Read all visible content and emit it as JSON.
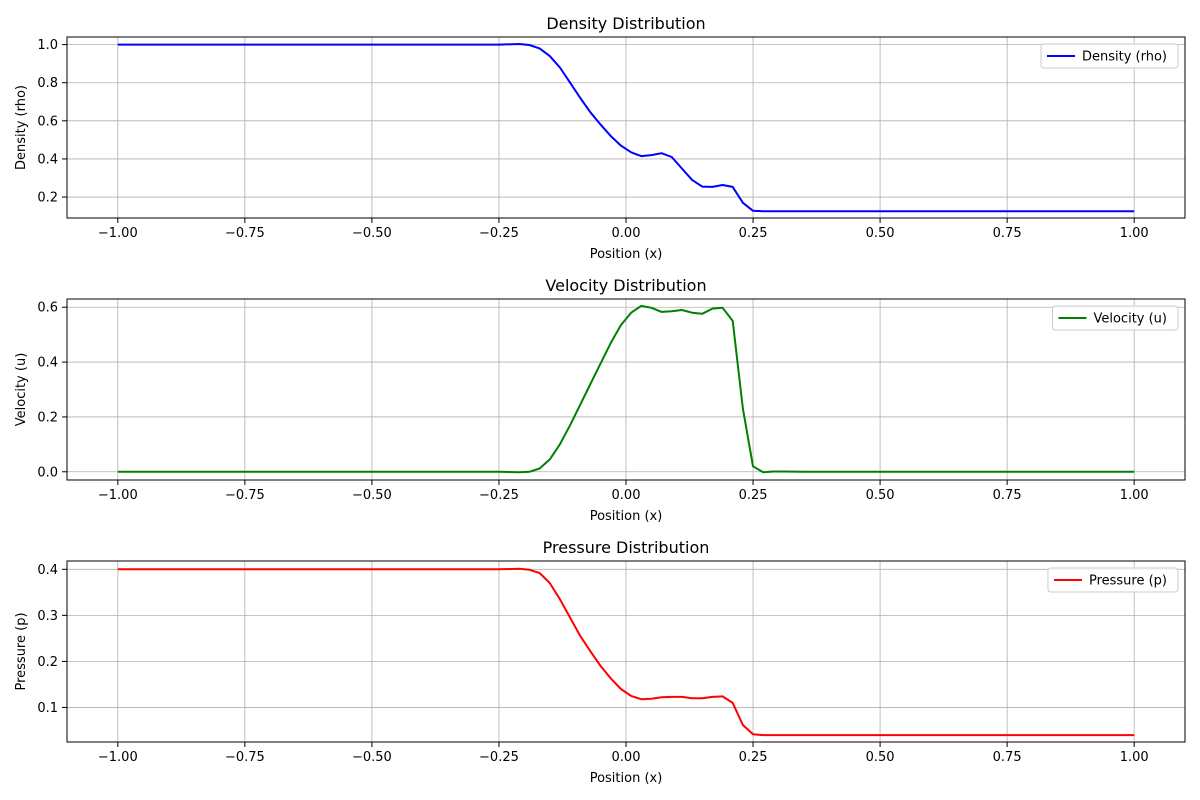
{
  "chart_data": [
    {
      "type": "line",
      "title": "Density Distribution",
      "xlabel": "Position (x)",
      "ylabel": "Density (rho)",
      "xlim": [
        -1.1,
        1.1
      ],
      "ylim": [
        0.09,
        1.04
      ],
      "xticks": [
        -1.0,
        -0.75,
        -0.5,
        -0.25,
        0.0,
        0.25,
        0.5,
        0.75,
        1.0
      ],
      "xtick_labels": [
        "−1.00",
        "−0.75",
        "−0.50",
        "−0.25",
        "0.00",
        "0.25",
        "0.50",
        "0.75",
        "1.00"
      ],
      "yticks": [
        0.2,
        0.4,
        0.6,
        0.8,
        1.0
      ],
      "ytick_labels": [
        "0.2",
        "0.4",
        "0.6",
        "0.8",
        "1.0"
      ],
      "grid": true,
      "legend_position": "top-right",
      "series": [
        {
          "name": "Density (rho)",
          "color": "#0000ff",
          "x": [
            -1.0,
            -0.25,
            -0.21,
            -0.19,
            -0.17,
            -0.15,
            -0.13,
            -0.11,
            -0.09,
            -0.07,
            -0.05,
            -0.03,
            -0.01,
            0.01,
            0.03,
            0.05,
            0.07,
            0.09,
            0.11,
            0.13,
            0.15,
            0.17,
            0.19,
            0.21,
            0.23,
            0.25,
            0.27,
            0.3,
            1.0
          ],
          "y": [
            1.0,
            1.0,
            1.003,
            0.998,
            0.98,
            0.94,
            0.88,
            0.8,
            0.72,
            0.645,
            0.58,
            0.52,
            0.47,
            0.435,
            0.415,
            0.42,
            0.43,
            0.41,
            0.35,
            0.29,
            0.255,
            0.253,
            0.263,
            0.253,
            0.17,
            0.128,
            0.125,
            0.125,
            0.125
          ]
        }
      ]
    },
    {
      "type": "line",
      "title": "Velocity Distribution",
      "xlabel": "Position (x)",
      "ylabel": "Velocity (u)",
      "xlim": [
        -1.1,
        1.1
      ],
      "ylim": [
        -0.03,
        0.63
      ],
      "xticks": [
        -1.0,
        -0.75,
        -0.5,
        -0.25,
        0.0,
        0.25,
        0.5,
        0.75,
        1.0
      ],
      "xtick_labels": [
        "−1.00",
        "−0.75",
        "−0.50",
        "−0.25",
        "0.00",
        "0.25",
        "0.50",
        "0.75",
        "1.00"
      ],
      "yticks": [
        0.0,
        0.2,
        0.4,
        0.6
      ],
      "ytick_labels": [
        "0.0",
        "0.2",
        "0.4",
        "0.6"
      ],
      "grid": true,
      "legend_position": "top-right",
      "series": [
        {
          "name": "Velocity (u)",
          "color": "#008000",
          "x": [
            -1.0,
            -0.25,
            -0.21,
            -0.19,
            -0.17,
            -0.15,
            -0.13,
            -0.11,
            -0.09,
            -0.07,
            -0.05,
            -0.03,
            -0.01,
            0.01,
            0.03,
            0.05,
            0.07,
            0.09,
            0.11,
            0.13,
            0.15,
            0.17,
            0.19,
            0.21,
            0.23,
            0.25,
            0.27,
            0.29,
            0.31,
            0.35,
            1.0
          ],
          "y": [
            0.0,
            0.0,
            -0.002,
            0.0,
            0.012,
            0.045,
            0.1,
            0.17,
            0.245,
            0.32,
            0.395,
            0.47,
            0.535,
            0.58,
            0.605,
            0.598,
            0.583,
            0.585,
            0.59,
            0.58,
            0.576,
            0.595,
            0.598,
            0.55,
            0.23,
            0.02,
            -0.002,
            0.001,
            0.001,
            0.0,
            0.0
          ]
        }
      ]
    },
    {
      "type": "line",
      "title": "Pressure Distribution",
      "xlabel": "Position (x)",
      "ylabel": "Pressure (p)",
      "xlim": [
        -1.1,
        1.1
      ],
      "ylim": [
        0.025,
        0.418
      ],
      "xticks": [
        -1.0,
        -0.75,
        -0.5,
        -0.25,
        0.0,
        0.25,
        0.5,
        0.75,
        1.0
      ],
      "xtick_labels": [
        "−1.00",
        "−0.75",
        "−0.50",
        "−0.25",
        "0.00",
        "0.25",
        "0.50",
        "0.75",
        "1.00"
      ],
      "yticks": [
        0.1,
        0.2,
        0.3,
        0.4
      ],
      "ytick_labels": [
        "0.1",
        "0.2",
        "0.3",
        "0.4"
      ],
      "grid": true,
      "legend_position": "top-right",
      "series": [
        {
          "name": "Pressure (p)",
          "color": "#ff0000",
          "x": [
            -1.0,
            -0.25,
            -0.21,
            -0.19,
            -0.17,
            -0.15,
            -0.13,
            -0.11,
            -0.09,
            -0.07,
            -0.05,
            -0.03,
            -0.01,
            0.01,
            0.03,
            0.05,
            0.07,
            0.09,
            0.11,
            0.13,
            0.15,
            0.17,
            0.19,
            0.21,
            0.23,
            0.25,
            0.27,
            0.3,
            1.0
          ],
          "y": [
            0.4,
            0.4,
            0.401,
            0.399,
            0.392,
            0.37,
            0.335,
            0.295,
            0.255,
            0.222,
            0.19,
            0.163,
            0.14,
            0.125,
            0.118,
            0.119,
            0.122,
            0.123,
            0.123,
            0.12,
            0.12,
            0.123,
            0.124,
            0.11,
            0.062,
            0.042,
            0.04,
            0.04,
            0.04
          ]
        }
      ]
    }
  ]
}
